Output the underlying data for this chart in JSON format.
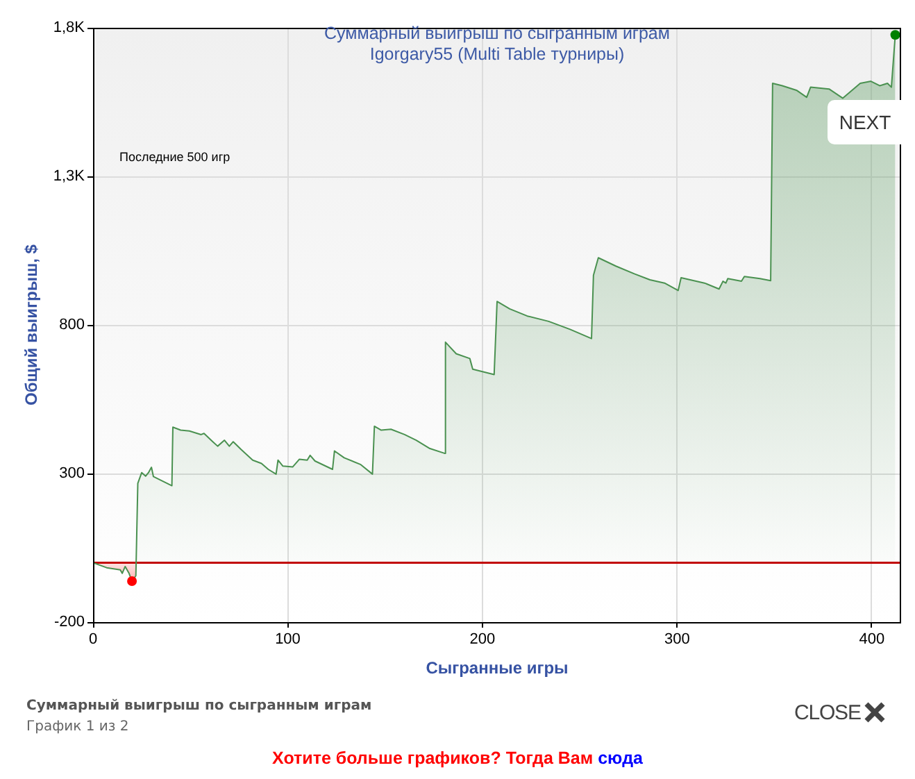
{
  "chart_data": {
    "type": "area",
    "title": "Суммарный выигрыш по сыгранным играм",
    "subtitle": "Igorgary55 (Multi Table турниры)",
    "xlabel": "Сыгранные игры",
    "ylabel": "Общий выигрыш, $",
    "annotations": [
      "Последние 500 игр",
      "NEXT",
      "Суммарный выигрыш по сыгранным играм",
      "График 1 из 2",
      "CLOSE",
      "Хотите больше графиков? Тогда Вам",
      "сюда"
    ],
    "xlim": [
      0,
      415
    ],
    "xticks": [
      0,
      100,
      200,
      300,
      400
    ],
    "ylim": [
      -200,
      1800
    ],
    "yticks": [
      -200,
      300,
      800,
      {
        "value": 1300,
        "label": "1,3K"
      },
      {
        "value": 1800,
        "label": "1,8K"
      }
    ],
    "grid": true,
    "marker": "none",
    "ref_lines": [
      {
        "axis": "y",
        "value": 0,
        "color": "#c00000"
      }
    ],
    "series": [
      {
        "color": "#4a9150",
        "x": [
          0,
          7,
          14,
          15,
          16.5,
          18.5,
          20,
          22,
          23,
          25,
          27,
          28.5,
          30,
          31,
          40.5,
          41,
          45,
          49.5,
          55.5,
          57,
          61.5,
          64,
          67.5,
          70,
          72,
          76,
          82,
          86.5,
          90,
          94,
          95,
          97.5,
          102.5,
          106,
          110,
          111.5,
          114,
          123,
          124,
          129,
          137.5,
          143.5,
          144.5,
          148,
          153,
          160,
          166,
          173,
          180.5,
          181,
          186.5,
          193.5,
          195,
          206,
          207.5,
          214,
          223,
          234,
          245,
          256,
          257,
          259.5,
          268.5,
          278,
          286,
          293.5,
          300.5,
          302,
          314,
          321.5,
          323.5,
          325,
          326,
          333,
          334.5,
          342.5,
          348,
          349,
          354,
          361.5,
          366.5,
          368.5,
          378,
          385,
          394,
          399.5,
          404,
          408,
          410,
          412
        ],
        "values": [
          0,
          -17,
          -24,
          -36,
          -13,
          -36,
          -62,
          -44,
          267,
          303,
          291,
          303,
          321,
          290,
          259,
          456,
          446,
          443,
          431,
          435,
          407,
          392,
          412,
          392,
          407,
          381,
          345,
          334,
          314,
          298,
          345,
          325,
          322,
          348,
          345,
          361,
          342,
          314,
          376,
          353,
          330,
          298,
          459,
          446,
          449,
          431,
          412,
          384,
          368,
          742,
          703,
          687,
          651,
          633,
          879,
          854,
          830,
          812,
          785,
          754,
          967,
          1026,
          998,
          972,
          952,
          941,
          916,
          959,
          941,
          921,
          947,
          941,
          956,
          947,
          963,
          956,
          949,
          1613,
          1605,
          1589,
          1566,
          1600,
          1594,
          1563,
          1613,
          1620,
          1605,
          1613,
          1600,
          1776
        ]
      },
      {
        "type": "scatter",
        "marker": "circle",
        "x": [
          20,
          412
        ],
        "values": [
          -62,
          1776
        ],
        "colors": [
          "#ff0000",
          "#008000"
        ]
      }
    ]
  }
}
